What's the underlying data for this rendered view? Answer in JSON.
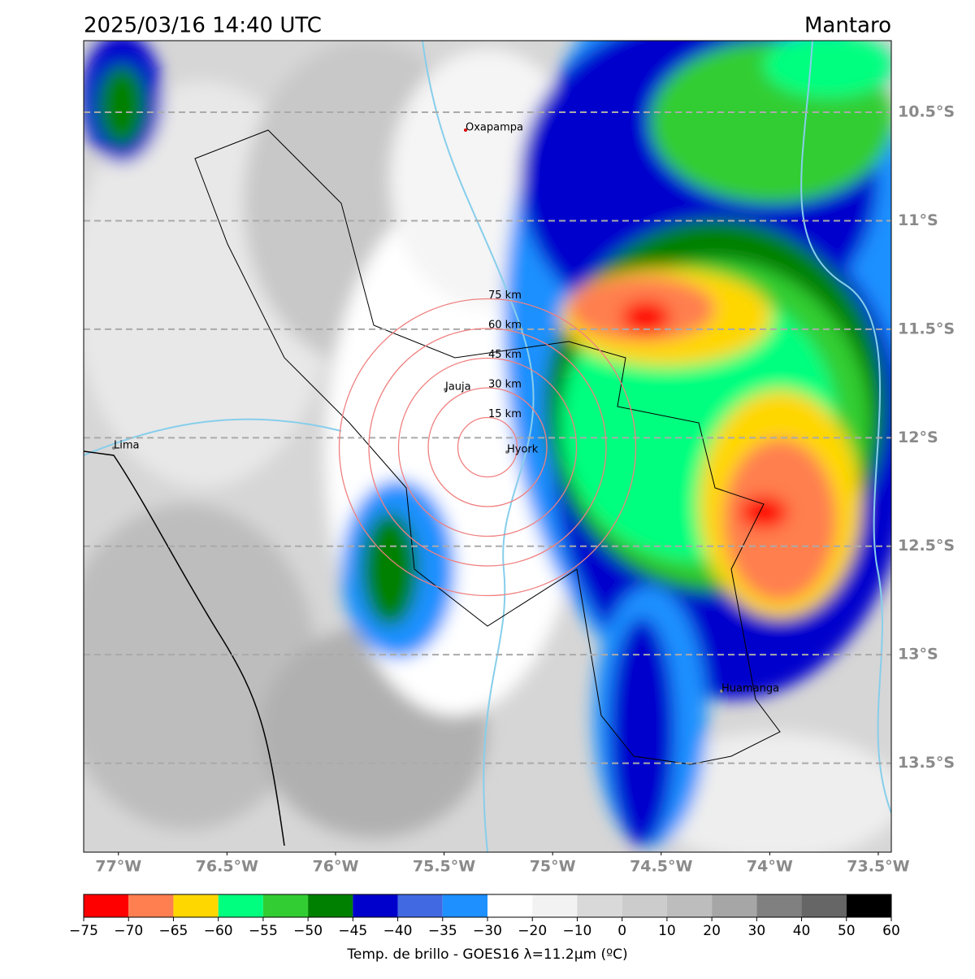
{
  "header": {
    "title": "2025/03/16 14:40 UTC",
    "region": "Mantaro"
  },
  "map": {
    "xlim": [
      -77.16,
      -73.44
    ],
    "ylim": [
      -13.91,
      -10.17
    ],
    "xticks": [
      {
        "value": -77,
        "label": "77°W"
      },
      {
        "value": -76.5,
        "label": "76.5°W"
      },
      {
        "value": -76,
        "label": "76°W"
      },
      {
        "value": -75.5,
        "label": "75.5°W"
      },
      {
        "value": -75,
        "label": "75°W"
      },
      {
        "value": -74.5,
        "label": "74.5°W"
      },
      {
        "value": -74,
        "label": "74°W"
      },
      {
        "value": -73.5,
        "label": "73.5°W"
      }
    ],
    "yticks": [
      {
        "value": -10.5,
        "label": "10.5°S"
      },
      {
        "value": -11,
        "label": "11°S"
      },
      {
        "value": -11.5,
        "label": "11.5°S"
      },
      {
        "value": -12,
        "label": "12°S"
      },
      {
        "value": -12.5,
        "label": "12.5°S"
      },
      {
        "value": -13,
        "label": "13°S"
      },
      {
        "value": -13.5,
        "label": "13.5°S"
      }
    ],
    "places": [
      "Oxapampa",
      "Jauja",
      "Hyork",
      "Lima",
      "Huamanga"
    ],
    "rings": [
      "15 km",
      "30 km",
      "45 km",
      "60 km",
      "75 km"
    ]
  },
  "colorbar": {
    "label": "Temp. de brillo - GOES16 λ=11.2μm (ºC)",
    "bounds": [
      {
        "value": -75,
        "label": "−75"
      },
      {
        "value": -70,
        "label": "−70"
      },
      {
        "value": -65,
        "label": "−65"
      },
      {
        "value": -60,
        "label": "−60"
      },
      {
        "value": -55,
        "label": "−55"
      },
      {
        "value": -50,
        "label": "−50"
      },
      {
        "value": -45,
        "label": "−45"
      },
      {
        "value": -40,
        "label": "−40"
      },
      {
        "value": -35,
        "label": "−35"
      },
      {
        "value": -30,
        "label": "−30"
      },
      {
        "value": -20,
        "label": "−20"
      },
      {
        "value": -10,
        "label": "−10"
      },
      0,
      10,
      20,
      30,
      40,
      50,
      60
    ],
    "colors": [
      "#ff0000",
      "#ff7f50",
      "#ffd700",
      "#00ff7f",
      "#32cd32",
      "#008000",
      "#0000cd",
      "#4169e1",
      "#1e90ff",
      "#ffffff",
      "#f2f2f2",
      "#d9d9d9",
      "#cccccc",
      "#bdbdbd",
      "#a6a6a6",
      "#808080",
      "#666666",
      "#000000"
    ]
  }
}
